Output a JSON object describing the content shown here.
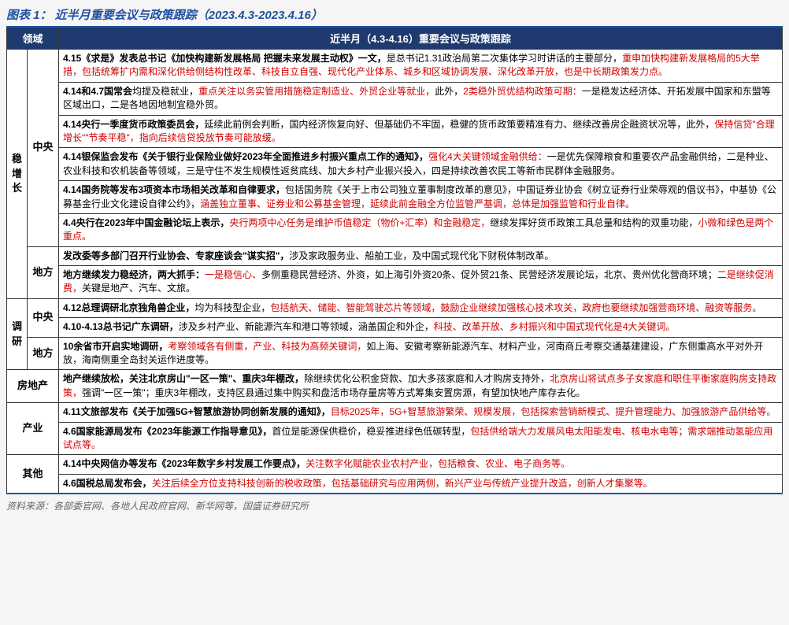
{
  "title": "图表 1：  近半月重要会议与政策跟踪（2023.4.3-2023.4.16）",
  "header": {
    "col1": "领域",
    "col2": "近半月（4.3-4.16）重要会议与政策跟踪"
  },
  "source": "资料来源：各部委官网、各地人民政府官网、新华网等，国盛证券研究所",
  "rows": {
    "r1_bold": "4.15《求是》发表总书记《加快构建新发展格局 把握未来发展主动权》一文，",
    "r1_a": "是总书记1.31政治局第二次集体学习时讲话的主要部分，",
    "r1_red": "重申加快构建新发展格局的5大举措，包括统筹扩内需和深化供给侧结构性改革、科技自立自强、现代化产业体系、城乡和区域协调发展、深化改革开放，也是中长期政策发力点。",
    "r2_bold": "4.14和4.7国常会",
    "r2_a": "均提及稳就业，",
    "r2_red1": "重点关注以务实管用措施稳定制造业、外贸企业等就业，",
    "r2_b": "此外，",
    "r2_red2": "2类稳外贸优结构政策可期：",
    "r2_c": "一是稳发达经济体、开拓发展中国家和东盟等区域出口，二是各地因地制宜稳外贸。",
    "r3_bold": "4.14央行一季度货币政策委员会，",
    "r3_a": "延续此前例会判断，国内经济恢复向好、但基础仍不牢固，稳健的货币政策要精准有力、继续改善房企融资状况等，此外，",
    "r3_red": "保持信贷\"合理增长\"\"节奏平稳\"，指向后续信贷投放节奏可能放缓。",
    "r4_bold": "4.14银保监会发布《关于银行业保险业做好2023年全面推进乡村振兴重点工作的通知》，",
    "r4_red": "强化4大关键领域金融供给：",
    "r4_a": "一是优先保障粮食和重要农产品金融供给，二是种业、农业科技和农机装备等领域，三是守住不发生规模性返贫底线、加大乡村产业振兴投入，四是持续改善农民工等新市民群体金融服务。",
    "r5_bold": "4.14国务院等发布3项资本市场相关改革和自律要求，",
    "r5_a": "包括国务院《关于上市公司独立董事制度改革的意见》，中国证券业协会《树立证券行业荣辱观的倡议书》，中基协《公募基金行业文化建设自律公约》，",
    "r5_red": "涵盖独立董事、证券业和公募基金管理，延续此前金融全方位监管严基调，总体是加强监管和行业自律。",
    "r6_bold": "4.4央行在2023年中国金融论坛上表示，",
    "r6_red1": "央行两项中心任务是维护币值稳定（物价+汇率）和金融稳定，",
    "r6_a": "继续发挥好货币政策工具总量和结构的双重功能，",
    "r6_red2": "小微和绿色是两个重点。",
    "r7_bold": "发改委等多部门召开行业协会、专家座谈会\"谋实招\"，",
    "r7_a": "涉及家政服务业、船舶工业，及中国式现代化下财税体制改革。",
    "r8_bold": "地方继续发力稳经济，两大抓手：",
    "r8_red1": "一是稳信心、",
    "r8_a": "多侧重稳民营经济、外资，如上海引外资20条、促外贸21条、民营经济发展论坛，北京、贵州优化营商环境；",
    "r8_red2": "二是继续促消费，",
    "r8_b": "关键是地产、汽车、文旅。",
    "r9_bold": "4.12总理调研北京独角兽企业，",
    "r9_a": "均为科技型企业，",
    "r9_red": "包括航天、储能、智能驾驶芯片等领域，鼓励企业继续加强核心技术攻关，政府也要继续加强营商环境、融资等服务。",
    "r10_bold": "4.10-4.13总书记广东调研，",
    "r10_a": "涉及乡村产业、新能源汽车和港口等领域，涵盖国企和外企，",
    "r10_red": "科技、改革开放、乡村振兴和中国式现代化是4大关键词。",
    "r11_bold": "10余省市开启实地调研，",
    "r11_red": "考察领域各有侧重，产业、科技为高频关键词，",
    "r11_a": "如上海、安徽考察新能源汽车、材料产业，河南商丘考察交通基建建设，广东侧重高水平对外开放，海南侧重全岛封关运作进度等。",
    "r12_bold": "地产继续放松，关注北京房山\"一区一策\"、重庆3年棚改，",
    "r12_a": "除继续优化公积金贷款、加大多孩家庭和人才购房支持外，",
    "r12_red": "北京房山将试点多子女家庭和职住平衡家庭购房支持政策，",
    "r12_b": "强调\"一区一策\"；重庆3年棚改，支持区县通过集中购买和盘活市场存量房等方式筹集安置房源，有望加快地产库存去化。",
    "r13_bold": "4.11文旅部发布《关于加强5G+智慧旅游协同创新发展的通知》，",
    "r13_red": "目标2025年，5G+智慧旅游繁荣、规模发展，包括探索营销新模式、提升管理能力、加强旅游产品供给等。",
    "r14_bold": "4.6国家能源局发布《2023年能源工作指导意见》，",
    "r14_a": "首位是能源保供稳价，稳妥推进绿色低碳转型，",
    "r14_red": "包括供给端大力发展风电太阳能发电、核电水电等；需求端推动氢能应用试点等。",
    "r15_bold": "4.14中央网信办等发布《2023年数字乡村发展工作要点》，",
    "r15_red": "关注数字化赋能农业农村产业，包括粮食、农业、电子商务等。",
    "r16_bold": "4.6国税总局发布会，",
    "r16_red": "关注后续全方位支持科技创新的税收政策，包括基础研究与应用两侧，新兴产业与传统产业提升改造，创新人才集聚等。"
  },
  "cats": {
    "stable": "稳增长",
    "central": "中央",
    "local": "地方",
    "research": "调研",
    "realestate": "房地产",
    "industry": "产业",
    "other": "其他"
  }
}
